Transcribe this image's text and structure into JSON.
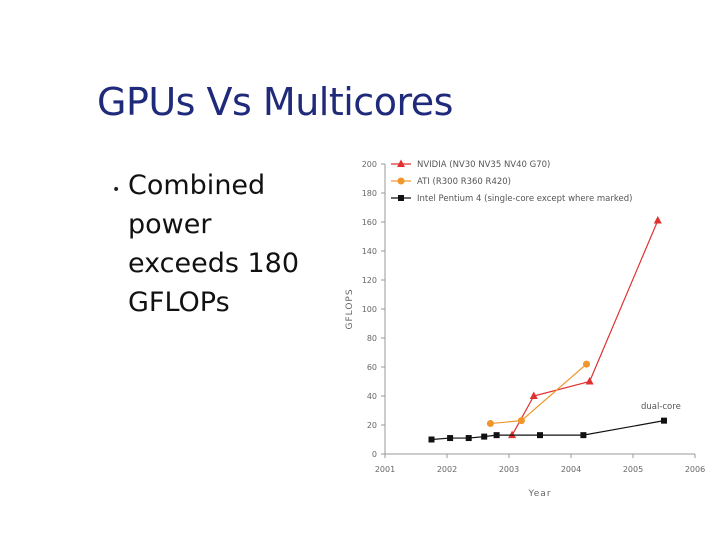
{
  "slide": {
    "title": "GPUs Vs Multicores",
    "bullets": [
      "Combined power exceeds 180 GFLOPs"
    ]
  },
  "chart_data": {
    "type": "line",
    "title": "",
    "xlabel": "Year",
    "ylabel": "GFLOPS",
    "xlim": [
      2001,
      2006
    ],
    "ylim": [
      0,
      200
    ],
    "x_ticks": [
      "2001",
      "2002",
      "2003",
      "2004",
      "2005",
      "2006"
    ],
    "y_ticks": [
      "0",
      "20",
      "40",
      "60",
      "80",
      "100",
      "120",
      "140",
      "160",
      "180",
      "200"
    ],
    "legend_position": "top-left",
    "grid": false,
    "series": [
      {
        "name": "NVIDIA (NV30 NV35 NV40 G70)",
        "color": "#e03030",
        "marker": "triangle",
        "points": [
          [
            2003.05,
            13
          ],
          [
            2003.4,
            40
          ],
          [
            2004.3,
            50
          ],
          [
            2005.4,
            161
          ]
        ]
      },
      {
        "name": "ATI (R300 R360 R420)",
        "color": "#f0962a",
        "marker": "circle",
        "points": [
          [
            2002.7,
            21
          ],
          [
            2003.2,
            23
          ],
          [
            2004.25,
            62
          ]
        ]
      },
      {
        "name": "Intel Pentium 4 (single-core except where marked)",
        "color": "#111111",
        "marker": "square",
        "points": [
          [
            2001.75,
            10
          ],
          [
            2002.05,
            11
          ],
          [
            2002.35,
            11
          ],
          [
            2002.6,
            12
          ],
          [
            2002.8,
            13
          ],
          [
            2003.5,
            13
          ],
          [
            2004.2,
            13
          ],
          [
            2005.5,
            23
          ]
        ]
      }
    ],
    "annotations": [
      {
        "text": "dual-core",
        "x": 2005.45,
        "y": 31
      }
    ]
  }
}
